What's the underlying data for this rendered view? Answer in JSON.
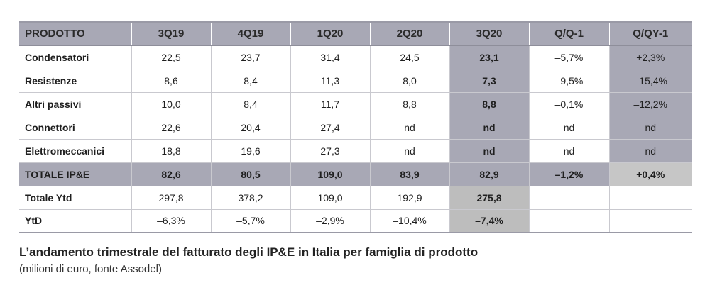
{
  "table": {
    "headers": [
      "PRODOTTO",
      "3Q19",
      "4Q19",
      "1Q20",
      "2Q20",
      "3Q20",
      "Q/Q-1",
      "Q/QY-1"
    ],
    "rows": [
      [
        "Condensatori",
        "22,5",
        "23,7",
        "31,4",
        "24,5",
        "23,1",
        "–5,7%",
        "+2,3%"
      ],
      [
        "Resistenze",
        "8,6",
        "8,4",
        "11,3",
        "8,0",
        "7,3",
        "–9,5%",
        "–15,4%"
      ],
      [
        "Altri passivi",
        "10,0",
        "8,4",
        "11,7",
        "8,8",
        "8,8",
        "–0,1%",
        "–12,2%"
      ],
      [
        "Connettori",
        "22,6",
        "20,4",
        "27,4",
        "nd",
        "nd",
        "nd",
        "nd"
      ],
      [
        "Elettromeccanici",
        "18,8",
        "19,6",
        "27,3",
        "nd",
        "nd",
        "nd",
        "nd"
      ],
      [
        "TOTALE IP&E",
        "82,6",
        "80,5",
        "109,0",
        "83,9",
        "82,9",
        "–1,2%",
        "+0,4%"
      ],
      [
        "Totale Ytd",
        "297,8",
        "378,2",
        "109,0",
        "192,9",
        "275,8",
        "",
        ""
      ],
      [
        "YtD",
        "–6,3%",
        "–5,7%",
        "–2,9%",
        "–10,4%",
        "–7,4%",
        "",
        ""
      ]
    ]
  },
  "caption": {
    "title": "L’andamento trimestrale del fatturato degli IP&E in Italia per famiglia di prodotto",
    "subtitle": "(milioni di euro, fonte Assodel)"
  },
  "colors": {
    "highlight": "#a8a8b5",
    "silver": "#bdbdbd"
  }
}
